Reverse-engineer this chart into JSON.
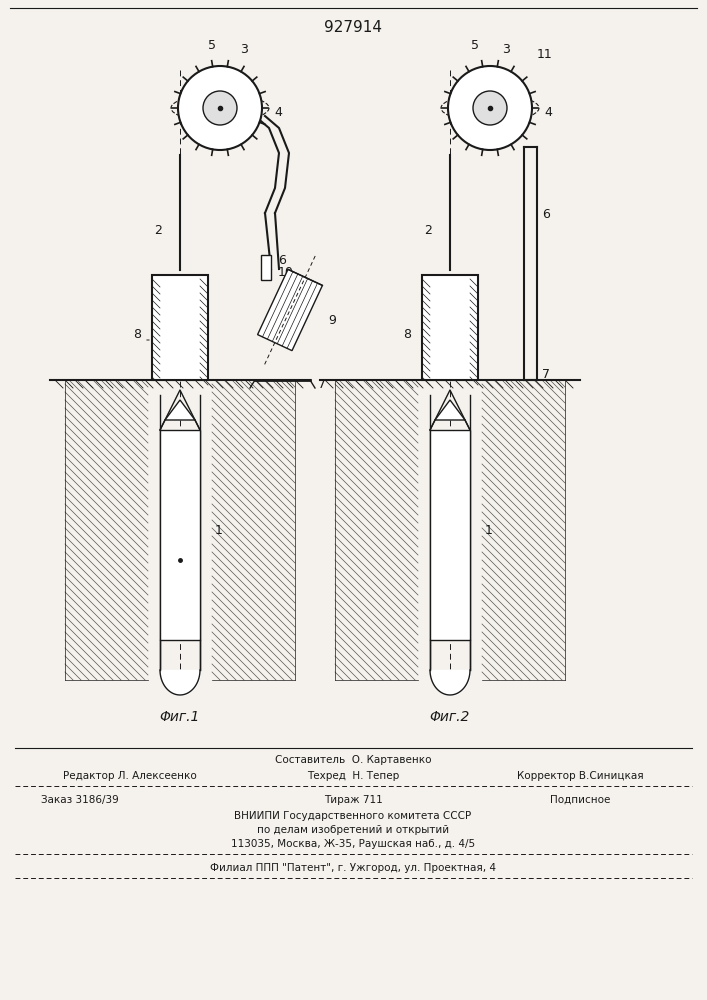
{
  "title": "927914",
  "bg_color": "#f5f2ed",
  "line_color": "#1a1a1a",
  "fig1_label": "Φиг.1",
  "fig2_label": "Φиг.2",
  "footer_line0": "Составитель  О. Картавенко",
  "footer_line1a": "Редактор Л. Алексеенко",
  "footer_line1b": "Техред  Н. Тепер",
  "footer_line1c": "Корректор В.Синицкая",
  "footer_line2a": "Заказ 3186/39",
  "footer_line2b": "Тираж 711",
  "footer_line2c": "Подписное",
  "footer_line3": "ВНИИПИ Государственного комитета СССР",
  "footer_line4": "по делам изобретений и открытий",
  "footer_line5": "113035, Москва, Ж-35, Раушская наб., д. 4/5",
  "footer_line6": "Филиал ППП \"Патент\", г. Ужгород, ул. Проектная, 4"
}
